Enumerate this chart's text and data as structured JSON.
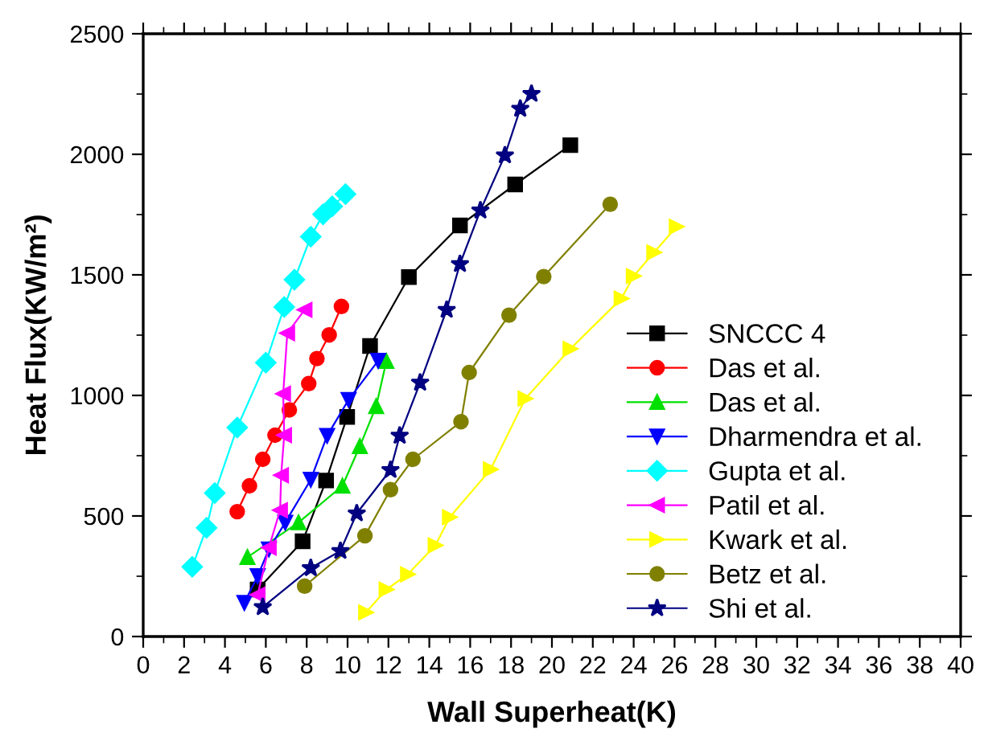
{
  "chart_data": {
    "type": "line",
    "xlabel": "Wall Superheat(K)",
    "ylabel": "Heat Flux(KW/m²)",
    "xlim": [
      0,
      40
    ],
    "xticks": [
      0,
      2,
      4,
      6,
      8,
      10,
      12,
      14,
      16,
      18,
      20,
      22,
      24,
      26,
      28,
      30,
      32,
      34,
      36,
      38,
      40
    ],
    "ylim": [
      0,
      2500
    ],
    "yticks": [
      0,
      500,
      1000,
      1500,
      2000,
      2500
    ],
    "grid": false,
    "legend": "bottom right",
    "series": [
      {
        "name": "SNCCC 4",
        "color": "#000000",
        "marker": "square",
        "x": [
          5.6,
          7.8,
          8.95,
          9.98,
          11.1,
          13.0,
          15.5,
          18.2,
          20.9
        ],
        "values": [
          195,
          395,
          647,
          911,
          1205,
          1491,
          1705,
          1875,
          2038
        ]
      },
      {
        "name": "Das et al.",
        "color": "#ff0000",
        "marker": "circle",
        "x": [
          4.6,
          5.2,
          5.85,
          6.45,
          7.15,
          8.1,
          8.5,
          9.1,
          9.7
        ],
        "values": [
          518,
          625,
          735,
          835,
          940,
          1049,
          1153,
          1251,
          1369
        ]
      },
      {
        "name": "Das et al.",
        "color": "#00e000",
        "marker": "triangle",
        "x": [
          5.1,
          7.6,
          9.75,
          10.6,
          11.4,
          11.9
        ],
        "values": [
          329,
          473,
          625,
          789,
          955,
          1142
        ]
      },
      {
        "name": "Dharmendra et al.",
        "color": "#0000ff",
        "marker": "triangle_down",
        "x": [
          4.95,
          5.6,
          6.15,
          6.95,
          8.2,
          9.0,
          10.05,
          11.5
        ],
        "values": [
          140,
          251,
          362,
          473,
          651,
          833,
          982,
          1144
        ]
      },
      {
        "name": "Gupta et al.",
        "color": "#00ffff",
        "marker": "diamond",
        "x": [
          2.4,
          3.1,
          3.5,
          4.6,
          6.0,
          6.9,
          7.4,
          8.2,
          8.8,
          9.25,
          9.9
        ],
        "values": [
          289,
          451,
          595,
          867,
          1136,
          1367,
          1480,
          1658,
          1751,
          1784,
          1835
        ]
      },
      {
        "name": "Patil et al.",
        "color": "#ff00ff",
        "marker": "triangle_left",
        "x": [
          5.6,
          6.15,
          6.7,
          6.75,
          6.9,
          6.85,
          7.05,
          7.9
        ],
        "values": [
          173,
          369,
          524,
          669,
          835,
          1007,
          1258,
          1355
        ]
      },
      {
        "name": "Kwark et al.",
        "color": "#ffff00",
        "marker": "triangle_right",
        "x": [
          10.9,
          11.9,
          12.95,
          14.3,
          15.0,
          17.0,
          18.7,
          20.9,
          23.4,
          24.0,
          25.0,
          26.1
        ],
        "values": [
          100,
          195,
          258,
          378,
          495,
          693,
          987,
          1193,
          1402,
          1495,
          1593,
          1700
        ]
      },
      {
        "name": "Betz et al.",
        "color": "#808000",
        "marker": "circle",
        "x": [
          7.9,
          10.85,
          12.1,
          13.2,
          15.55,
          15.95,
          17.9,
          19.6,
          22.85
        ],
        "values": [
          209,
          418,
          609,
          735,
          891,
          1095,
          1333,
          1493,
          1793
        ]
      },
      {
        "name": "Shi et al.",
        "color": "#000080",
        "marker": "star",
        "x": [
          5.85,
          8.2,
          9.65,
          10.45,
          12.1,
          12.55,
          13.55,
          14.85,
          15.5,
          16.5,
          17.7,
          18.45,
          19.0
        ],
        "values": [
          122,
          284,
          355,
          511,
          691,
          833,
          1053,
          1355,
          1545,
          1767,
          1996,
          2189,
          2251
        ]
      }
    ]
  }
}
